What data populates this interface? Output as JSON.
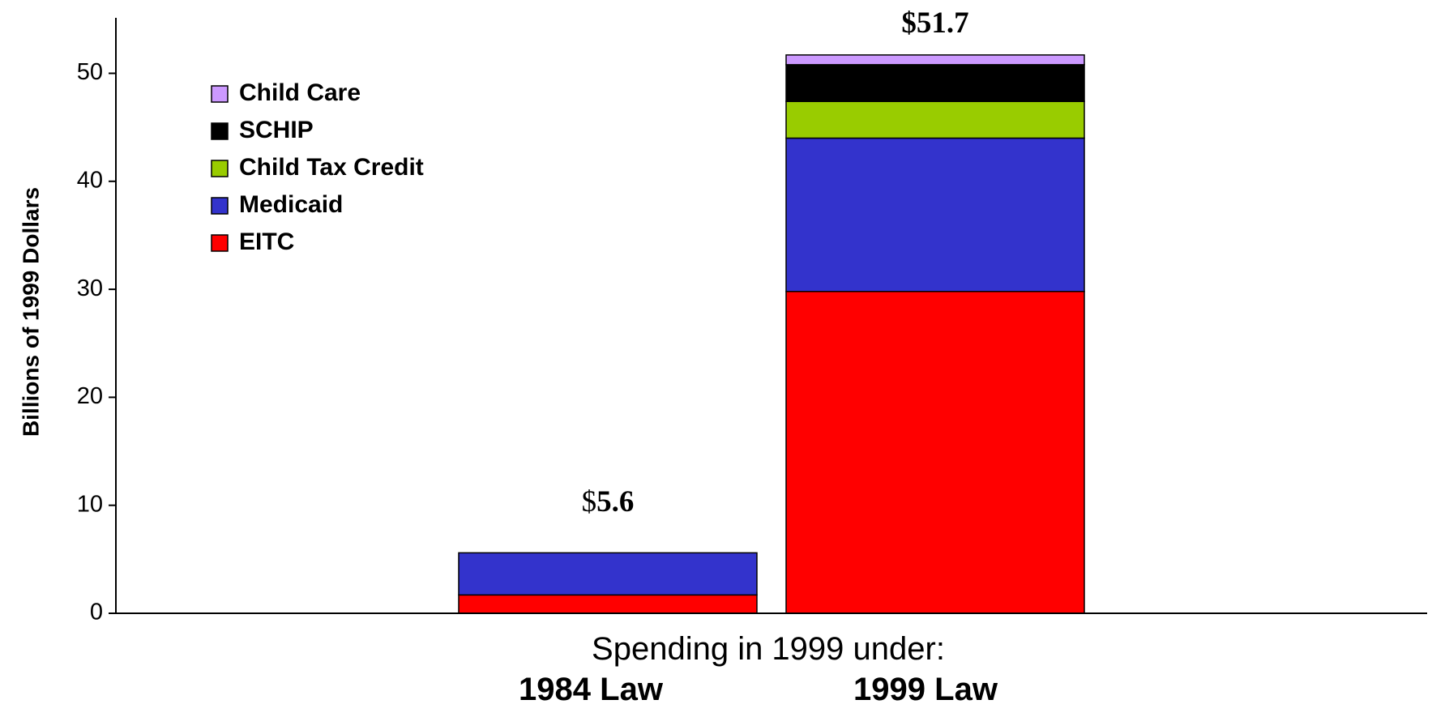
{
  "chart_data": {
    "type": "bar",
    "stacked": true,
    "categories": [
      "1984 Law",
      "1999 Law"
    ],
    "series": [
      {
        "name": "EITC",
        "color": "#ff0000",
        "values": [
          1.7,
          29.8
        ]
      },
      {
        "name": "Medicaid",
        "color": "#3333cc",
        "values": [
          3.9,
          14.2
        ]
      },
      {
        "name": "Child Tax Credit",
        "color": "#99cc00",
        "values": [
          0,
          3.4
        ]
      },
      {
        "name": "SCHIP",
        "color": "#000000",
        "values": [
          0,
          3.4
        ]
      },
      {
        "name": "Child Care",
        "color": "#cc99ff",
        "values": [
          0,
          0.9
        ]
      }
    ],
    "totals": [
      {
        "symbol": "$",
        "value": "5.6"
      },
      {
        "symbol": "$",
        "value": "51.7"
      }
    ],
    "xlabel": "Spending in 1999 under:",
    "ylabel": "Billions of 1999 Dollars",
    "ylim": [
      0,
      55
    ],
    "yticks": [
      0,
      10,
      20,
      30,
      40,
      50
    ],
    "legend_order": [
      "Child Care",
      "SCHIP",
      "Child Tax Credit",
      "Medicaid",
      "EITC"
    ],
    "legend_position": "top-left",
    "grid": false
  }
}
